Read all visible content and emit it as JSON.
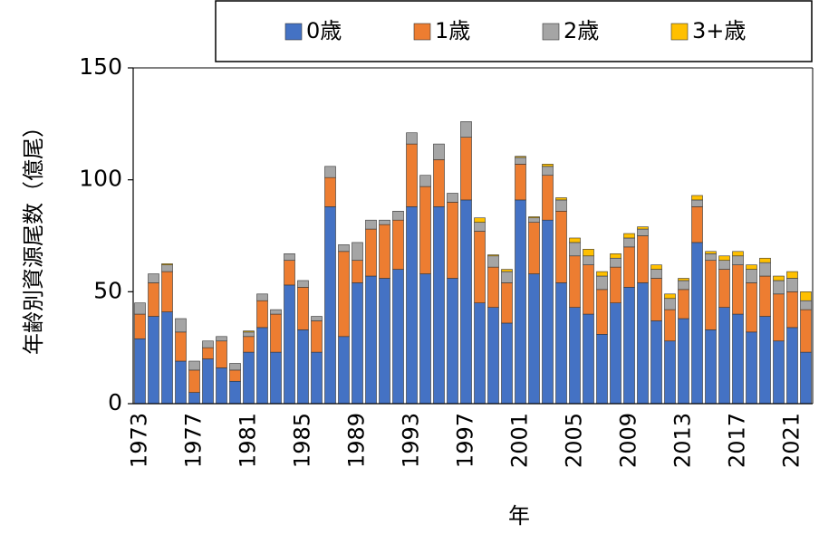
{
  "chart_data": {
    "type": "stacked-bar",
    "x_label": "年",
    "y_label": "年齢別資源尾数（億尾）",
    "legend": "top",
    "categories": [
      "1973",
      null,
      null,
      null,
      "1977",
      null,
      null,
      null,
      "1981",
      null,
      null,
      null,
      "1985",
      null,
      null,
      null,
      "1989",
      null,
      null,
      null,
      "1993",
      null,
      null,
      null,
      "1997",
      null,
      null,
      null,
      "2001",
      null,
      null,
      null,
      "2005",
      null,
      null,
      null,
      "2009",
      null,
      null,
      null,
      "2013",
      null,
      null,
      null,
      "2017",
      null,
      null,
      null,
      "2021",
      null
    ],
    "series": [
      {
        "name": "0歳",
        "color": "#4472c4",
        "values": [
          29,
          39,
          41,
          19,
          5,
          20,
          16,
          10,
          23,
          34,
          23,
          53,
          33,
          23,
          88,
          30,
          54,
          57,
          56,
          60,
          88,
          58,
          88,
          56,
          91,
          45,
          43,
          36,
          91,
          58,
          82,
          54,
          43,
          40,
          31,
          45,
          52,
          54,
          37,
          28,
          38,
          72,
          33,
          43,
          40,
          32,
          39,
          28,
          34,
          23
        ]
      },
      {
        "name": "1歳",
        "color": "#ed7d31",
        "values": [
          11,
          15,
          18,
          13,
          10,
          5,
          12,
          5,
          7,
          12,
          17,
          11,
          19,
          14,
          13,
          38,
          10,
          21,
          24,
          22,
          28,
          39,
          21,
          34,
          28,
          32,
          18,
          18,
          16,
          23,
          20,
          32,
          23,
          22,
          20,
          16,
          18,
          21,
          19,
          14,
          13,
          16,
          31,
          17,
          22,
          22,
          18,
          21,
          16,
          19
        ]
      },
      {
        "name": "2歳",
        "color": "#a5a5a5",
        "values": [
          5,
          4,
          3,
          6,
          4,
          3,
          2,
          3,
          2,
          3,
          2,
          3,
          3,
          2,
          5,
          3,
          8,
          4,
          2,
          4,
          5,
          5,
          7,
          4,
          7,
          4,
          5,
          5,
          3,
          2,
          4,
          5,
          6,
          4,
          6,
          4,
          4,
          3,
          4,
          5,
          4,
          3,
          3,
          4,
          4,
          6,
          6,
          6,
          6,
          4
        ]
      },
      {
        "name": "3+歳",
        "color": "#ffc000",
        "values": [
          0,
          0,
          0.5,
          0,
          0,
          0,
          0,
          0,
          0.5,
          0,
          0,
          0,
          0,
          0,
          0,
          0,
          0,
          0,
          0,
          0,
          0,
          0,
          0,
          0,
          0,
          2,
          0.5,
          1,
          0.5,
          0.5,
          1,
          1,
          2,
          3,
          2,
          2,
          2,
          1,
          2,
          2,
          1,
          2,
          1,
          2,
          2,
          2,
          2,
          2,
          3,
          4
        ]
      }
    ],
    "ylim": [
      0,
      150
    ],
    "yticks": [
      0,
      50,
      100,
      150
    ]
  }
}
